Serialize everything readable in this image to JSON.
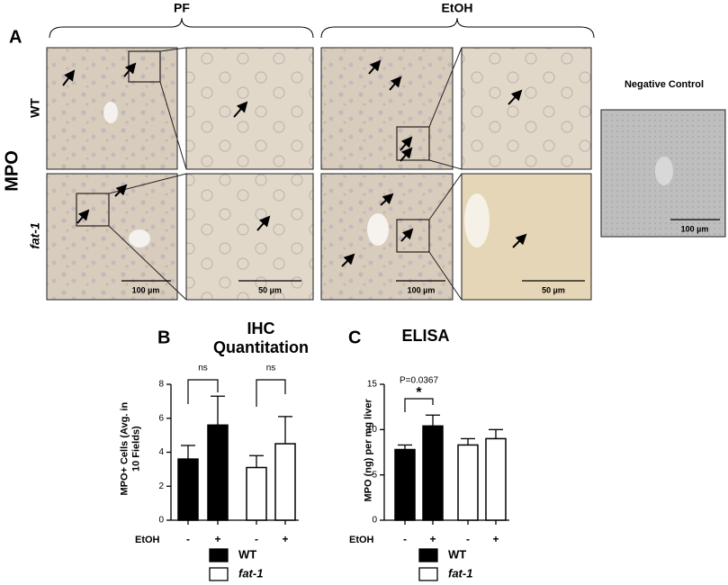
{
  "figure": {
    "label": "A",
    "groups": [
      "PF",
      "EtOH"
    ],
    "marker": "MPO",
    "rows": [
      "WT",
      "fat-1"
    ],
    "negative_control": "Negative Control",
    "scale_bars": [
      "100 µm",
      "50 µm",
      "100 µm",
      "50 µm",
      "100 µm"
    ]
  },
  "chart_data": [
    {
      "type": "bar",
      "panel": "B",
      "title": "IHC Quantitation",
      "ylabel": "MPO+ Cells (Avg. in 10 Fields)",
      "xlabel": "EtOH",
      "categories": [
        "-",
        "+",
        "-",
        "+"
      ],
      "series": [
        {
          "name": "WT",
          "color": "#000000",
          "values": [
            3.6,
            5.6,
            null,
            null
          ],
          "errors": [
            0.8,
            1.7,
            null,
            null
          ]
        },
        {
          "name": "fat-1",
          "color": "#ffffff",
          "values": [
            null,
            null,
            3.1,
            4.5
          ],
          "errors": [
            null,
            null,
            0.7,
            1.6
          ]
        }
      ],
      "ylim": [
        0,
        8
      ],
      "yticks": [
        0,
        2,
        4,
        6,
        8
      ],
      "annotations": [
        "ns",
        "ns"
      ]
    },
    {
      "type": "bar",
      "panel": "C",
      "title": "ELISA",
      "ylabel": "MPO (ng) per mg liver",
      "xlabel": "EtOH",
      "categories": [
        "-",
        "+",
        "-",
        "+"
      ],
      "series": [
        {
          "name": "WT",
          "color": "#000000",
          "values": [
            7.8,
            10.4,
            null,
            null
          ],
          "errors": [
            0.5,
            1.2,
            null,
            null
          ]
        },
        {
          "name": "fat-1",
          "color": "#ffffff",
          "values": [
            null,
            null,
            8.3,
            9.0
          ],
          "errors": [
            null,
            null,
            0.7,
            1.0
          ]
        }
      ],
      "ylim": [
        0,
        15
      ],
      "yticks": [
        0,
        5,
        10,
        15
      ],
      "annotations": [
        "P=0.0367",
        "*"
      ]
    }
  ]
}
